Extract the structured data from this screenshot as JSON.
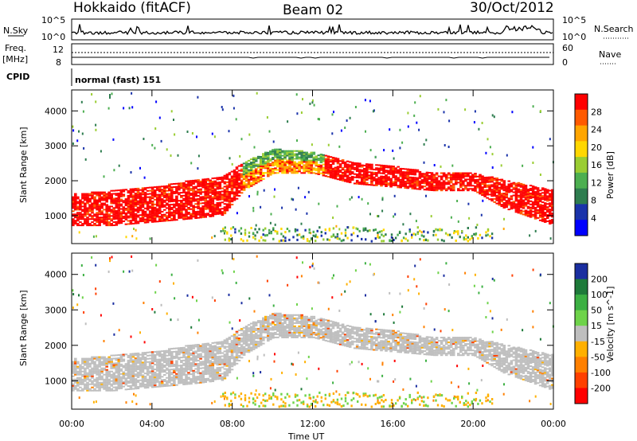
{
  "header": {
    "station": "Hokkaido (fitACF)",
    "beam": "Beam 02",
    "date": "30/Oct/2012"
  },
  "top_strip": {
    "left_label": "N.Sky",
    "left_ticks": [
      "10^5",
      "10^0"
    ],
    "right_ticks": [
      "10^5",
      "10^0"
    ],
    "right_label": "N.Search"
  },
  "freq_strip": {
    "left_label_1": "Freq.",
    "left_label_2": "[MHz]",
    "left_ticks": [
      "12",
      "8"
    ],
    "right_ticks": [
      "60",
      "0"
    ],
    "right_label": "Nave"
  },
  "cpid_strip": {
    "label": "CPID",
    "mode_text": "normal (fast) 151"
  },
  "colors": {
    "power_scale": [
      "#0000ff",
      "#1a33aa",
      "#2e7d4f",
      "#4caf50",
      "#9acd32",
      "#ffd700",
      "#ffa500",
      "#ff5a00",
      "#ff0000"
    ],
    "velocity_scale": [
      "#1a2ea0",
      "#1e7a3a",
      "#3cb043",
      "#6ed34a",
      "#bebebe",
      "#ffb000",
      "#ff8000",
      "#ff4000",
      "#ff0000"
    ],
    "ground_scatter": "#bebebe"
  },
  "chart_data": [
    {
      "type": "heatmap",
      "name": "power",
      "ylabel": "Slant Range [km]",
      "colorbar_label": "Power [dB]",
      "colorbar_ticks": [
        4,
        8,
        12,
        16,
        20,
        24,
        28
      ],
      "ylim": [
        200,
        4600
      ],
      "yticks": [
        1000,
        2000,
        3000,
        4000
      ],
      "x_ticks": [
        "00:00",
        "04:00",
        "08:00",
        "12:00",
        "16:00",
        "20:00",
        "00:00"
      ],
      "xlim_hours": [
        0,
        24
      ],
      "main_band": [
        {
          "t": 0,
          "lo": 700,
          "hi": 1600
        },
        {
          "t": 2,
          "lo": 700,
          "hi": 1700
        },
        {
          "t": 4,
          "lo": 800,
          "hi": 1800
        },
        {
          "t": 6,
          "lo": 900,
          "hi": 2000
        },
        {
          "t": 7.5,
          "lo": 1000,
          "hi": 2100
        },
        {
          "t": 8.5,
          "lo": 1700,
          "hi": 2500
        },
        {
          "t": 10,
          "lo": 2200,
          "hi": 2900
        },
        {
          "t": 12,
          "lo": 2200,
          "hi": 2800
        },
        {
          "t": 14,
          "lo": 1900,
          "hi": 2500
        },
        {
          "t": 16,
          "lo": 1800,
          "hi": 2400
        },
        {
          "t": 18,
          "lo": 1700,
          "hi": 2200
        },
        {
          "t": 20,
          "lo": 1700,
          "hi": 2200
        },
        {
          "t": 21.5,
          "lo": 1200,
          "hi": 2000
        },
        {
          "t": 24,
          "lo": 700,
          "hi": 1700
        }
      ]
    },
    {
      "type": "heatmap",
      "name": "velocity",
      "ylabel": "Slant Range [km]",
      "colorbar_label": "Velocity [m s^-1]",
      "colorbar_ticks": [
        200,
        100,
        50,
        15,
        -15,
        -50,
        -100,
        -200
      ],
      "ylim": [
        200,
        4600
      ],
      "yticks": [
        1000,
        2000,
        3000,
        4000
      ],
      "x_ticks": [
        "00:00",
        "04:00",
        "08:00",
        "12:00",
        "16:00",
        "20:00",
        "00:00"
      ],
      "xlabel": "Time UT",
      "xlim_hours": [
        0,
        24
      ]
    }
  ]
}
